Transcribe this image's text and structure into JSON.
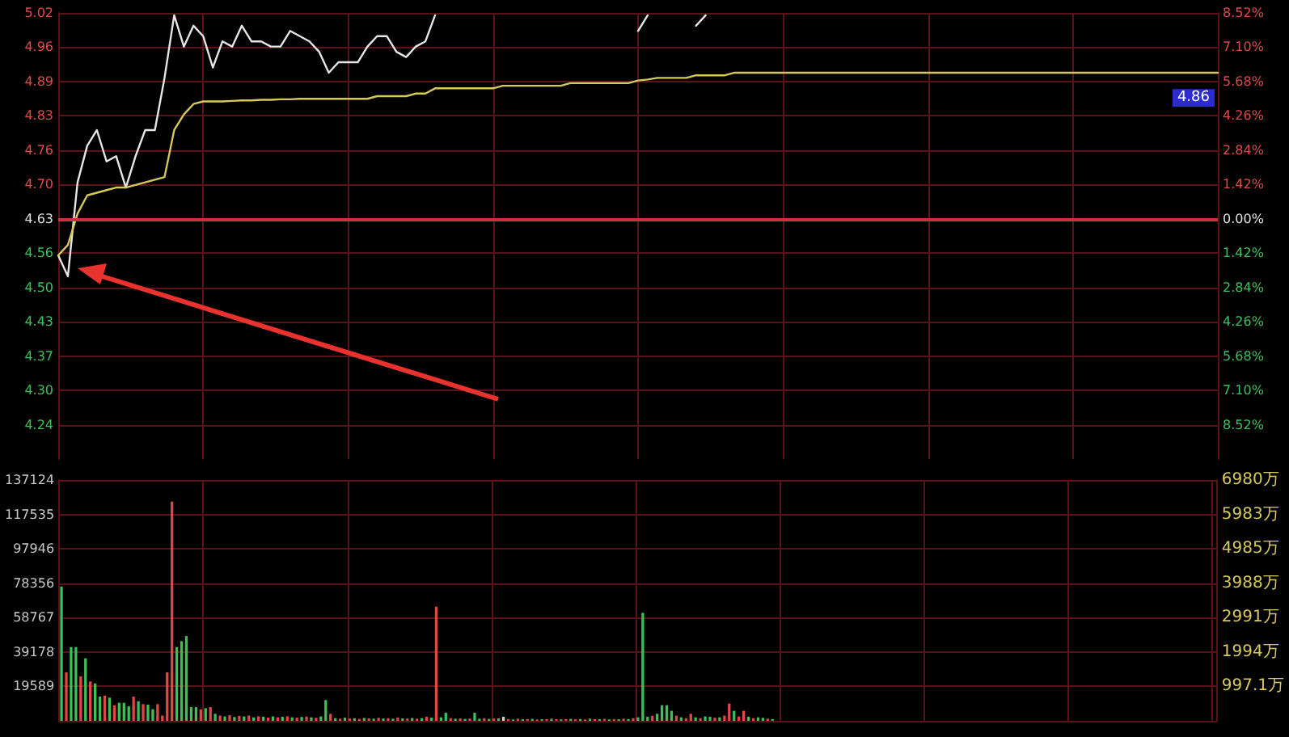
{
  "chart_data": [
    {
      "type": "line",
      "categories": [
        null,
        null,
        null,
        null,
        null,
        null,
        null,
        null,
        null,
        null,
        null,
        null,
        null,
        null,
        null,
        null,
        null,
        null,
        null,
        null,
        null,
        null,
        null,
        null,
        null,
        null,
        null,
        null,
        null,
        null,
        null,
        null,
        null,
        null,
        null,
        null,
        null,
        null,
        null,
        null,
        null,
        null,
        null,
        null,
        null,
        null,
        null,
        null,
        null,
        null,
        null,
        null,
        null,
        null,
        null,
        null,
        null,
        null,
        null,
        null,
        null,
        null,
        null,
        null,
        null,
        null,
        null,
        null,
        null,
        null,
        null,
        null,
        null,
        null,
        null,
        null,
        null,
        null,
        null,
        null,
        null,
        null,
        null,
        null,
        null,
        null,
        null,
        null,
        null,
        null,
        null,
        null,
        null,
        null,
        null,
        null,
        null,
        null,
        null,
        null,
        null,
        null,
        null,
        null,
        null,
        null,
        null,
        null,
        null,
        null,
        null,
        null,
        null,
        null,
        null,
        null,
        null,
        null,
        null,
        null,
        null
      ],
      "series": [
        {
          "color": "#e6e6e6",
          "values": [
            4.56,
            4.52,
            4.7,
            4.77,
            4.8,
            4.74,
            4.75,
            4.69,
            4.75,
            4.8,
            4.8,
            4.9,
            5.02,
            4.96,
            5.0,
            4.98,
            4.92,
            4.97,
            4.96,
            5.0,
            4.97,
            4.97,
            4.96,
            4.96,
            4.99,
            4.98,
            4.97,
            4.95,
            4.91,
            4.93,
            4.93,
            4.93,
            4.96,
            4.98,
            4.98,
            4.95,
            4.94,
            4.96,
            4.97,
            5.02,
            null,
            null,
            null,
            null,
            null,
            null,
            null,
            null,
            null,
            null,
            null,
            null,
            null,
            null,
            null,
            null,
            null,
            null,
            null,
            null,
            4.99,
            5.02,
            null,
            null,
            null,
            null,
            5.0,
            5.02,
            null,
            null,
            null,
            null,
            null,
            null,
            null,
            null,
            null,
            null,
            null,
            null,
            null,
            null,
            null,
            null,
            null,
            null,
            null,
            null,
            null,
            null,
            null,
            null,
            null,
            null,
            null,
            null,
            null,
            null,
            null,
            null,
            null,
            null,
            null,
            null,
            null,
            null,
            null,
            null,
            null,
            null,
            null,
            null,
            null,
            null,
            null,
            null,
            null,
            null,
            null,
            null,
            null
          ]
        },
        {
          "color": "#d6c85a",
          "values": [
            4.56,
            4.58,
            4.64,
            4.675,
            4.68,
            4.685,
            4.69,
            4.69,
            4.695,
            4.7,
            4.705,
            4.71,
            4.8,
            4.83,
            4.85,
            4.855,
            4.855,
            4.855,
            4.856,
            4.857,
            4.857,
            4.858,
            4.858,
            4.859,
            4.859,
            4.86,
            4.86,
            4.86,
            4.86,
            4.86,
            4.86,
            4.86,
            4.86,
            4.865,
            4.865,
            4.865,
            4.865,
            4.87,
            4.87,
            4.88,
            4.88,
            4.88,
            4.88,
            4.88,
            4.88,
            4.88,
            4.885,
            4.885,
            4.885,
            4.885,
            4.885,
            4.885,
            4.885,
            4.89,
            4.89,
            4.89,
            4.89,
            4.89,
            4.89,
            4.89,
            4.895,
            4.897,
            4.9,
            4.9,
            4.9,
            4.9,
            4.905,
            4.905,
            4.905,
            4.905,
            4.91,
            4.91,
            4.91,
            4.91,
            4.91,
            4.91,
            4.91,
            4.91,
            4.91,
            4.91,
            4.91,
            4.91,
            4.91,
            4.91,
            4.91,
            4.91,
            4.91,
            4.91,
            4.91,
            4.91,
            4.91,
            4.91,
            4.91,
            4.91,
            4.91,
            4.91,
            4.91,
            4.91,
            4.91,
            4.91,
            4.91,
            4.91,
            4.91,
            4.91,
            4.91,
            4.91,
            4.91,
            4.91,
            4.91,
            4.91,
            4.91,
            4.91,
            4.91,
            4.91,
            4.91,
            4.91,
            4.91,
            4.91,
            4.91,
            4.91,
            4.91
          ]
        }
      ],
      "ylim": [
        4.1698,
        5.0245
      ],
      "yticks": [
        {
          "value": 4.2355,
          "label": "4.24"
        },
        {
          "value": 4.3013,
          "label": "4.30"
        },
        {
          "value": 4.367,
          "label": "4.37"
        },
        {
          "value": 4.4328,
          "label": "4.43"
        },
        {
          "value": 4.4985,
          "label": "4.50"
        },
        {
          "value": 4.5643,
          "label": "4.56"
        },
        {
          "value": 4.63,
          "label": "4.63"
        },
        {
          "value": 4.6958,
          "label": "4.70"
        },
        {
          "value": 4.7615,
          "label": "4.76"
        },
        {
          "value": 4.8273,
          "label": "4.83"
        },
        {
          "value": 4.893,
          "label": "4.89"
        },
        {
          "value": 4.9588,
          "label": "4.96"
        },
        {
          "value": 5.0245,
          "label": "5.02"
        }
      ],
      "y2lim": [
        -9.94,
        8.52
      ],
      "y2ticks": [
        {
          "value": -8.52,
          "label": "8.52%"
        },
        {
          "value": -7.1,
          "label": "7.10%"
        },
        {
          "value": -5.68,
          "label": "5.68%"
        },
        {
          "value": -4.26,
          "label": "4.26%"
        },
        {
          "value": -2.84,
          "label": "2.84%"
        },
        {
          "value": -1.42,
          "label": "1.42%"
        },
        {
          "value": 0,
          "label": "0.00%"
        },
        {
          "value": 1.42,
          "label": "1.42%"
        },
        {
          "value": 2.84,
          "label": "2.84%"
        },
        {
          "value": 4.26,
          "label": "4.26%"
        },
        {
          "value": 5.68,
          "label": "5.68%"
        },
        {
          "value": 7.1,
          "label": "7.10%"
        },
        {
          "value": 8.52,
          "label": "8.52%"
        }
      ],
      "ref_lines": [
        {
          "axis": "y",
          "value": 4.63,
          "color": "#c8323c"
        }
      ],
      "annotations": [
        {
          "text": "4.86",
          "y": 4.86
        }
      ],
      "grid": true,
      "marker": "none",
      "line_style": "solid"
    },
    {
      "type": "bar",
      "categories": [
        null,
        null,
        null,
        null,
        null,
        null,
        null,
        null,
        null,
        null,
        null,
        null,
        null,
        null,
        null,
        null,
        null,
        null,
        null,
        null,
        null,
        null,
        null,
        null,
        null,
        null,
        null,
        null,
        null,
        null,
        null,
        null,
        null,
        null,
        null,
        null,
        null,
        null,
        null,
        null,
        null,
        null,
        null,
        null,
        null,
        null,
        null,
        null,
        null,
        null,
        null,
        null,
        null,
        null,
        null,
        null,
        null,
        null,
        null,
        null,
        null,
        null,
        null,
        null,
        null,
        null,
        null,
        null,
        null,
        null,
        null,
        null,
        null,
        null,
        null,
        null,
        null,
        null,
        null,
        null,
        null,
        null,
        null,
        null,
        null,
        null,
        null,
        null,
        null,
        null,
        null,
        null,
        null,
        null,
        null,
        null,
        null,
        null,
        null,
        null,
        null,
        null,
        null,
        null,
        null,
        null,
        null,
        null,
        null,
        null,
        null,
        null,
        null,
        null,
        null,
        null,
        null,
        null,
        null,
        null,
        null,
        null,
        null,
        null,
        null,
        null,
        null,
        null,
        null,
        null,
        null,
        null,
        null,
        null,
        null,
        null,
        null,
        null,
        null,
        null,
        null,
        null,
        null,
        null,
        null,
        null,
        null,
        null,
        null,
        null,
        null,
        null,
        null,
        null,
        null,
        null,
        null,
        null,
        null,
        null,
        null,
        null,
        null,
        null,
        null,
        null,
        null,
        null,
        null,
        null,
        null,
        null,
        null,
        null,
        null,
        null,
        null,
        null,
        null,
        null,
        null,
        null,
        null,
        null,
        null,
        null,
        null,
        null,
        null,
        null,
        null,
        null,
        null,
        null,
        null,
        null,
        null,
        null,
        null,
        null,
        null,
        null,
        null,
        null,
        null,
        null,
        null,
        null,
        null,
        null,
        null,
        null,
        null,
        null,
        null,
        null,
        null,
        null,
        null,
        null,
        null,
        null,
        null,
        null,
        null,
        null,
        null,
        null,
        null,
        null,
        null,
        null,
        null,
        null,
        null,
        null,
        null,
        null,
        null,
        null,
        null
      ],
      "values": [
        76500,
        27600,
        42000,
        42000,
        25300,
        35600,
        22400,
        21300,
        13800,
        14400,
        13200,
        8900,
        10300,
        10300,
        8300,
        13800,
        11200,
        9500,
        9200,
        6600,
        9500,
        3000,
        27600,
        124800,
        42000,
        45400,
        48300,
        7800,
        7800,
        6600,
        7200,
        7800,
        4000,
        3000,
        2500,
        3200,
        2200,
        2800,
        2500,
        3000,
        2000,
        2600,
        2300,
        1800,
        2500,
        2000,
        2300,
        2600,
        2000,
        1800,
        2200,
        2400,
        2000,
        1700,
        2500,
        11800,
        4000,
        1500,
        1200,
        1800,
        1300,
        1500,
        1100,
        1600,
        1400,
        1200,
        1700,
        1300,
        1500,
        1200,
        1900,
        1400,
        1300,
        1600,
        1200,
        1500,
        2300,
        1800,
        65000,
        2000,
        4600,
        1500,
        1200,
        1400,
        1100,
        1300,
        4600,
        1200,
        1500,
        1100,
        1300,
        1400,
        2300,
        1000,
        800,
        1200,
        900,
        1000,
        1100,
        800,
        900,
        1000,
        1200,
        900,
        800,
        1000,
        1100,
        900,
        1000,
        800,
        1200,
        1000,
        900,
        1100,
        800,
        1000,
        900,
        1200,
        1000,
        1500,
        2000,
        61500,
        2300,
        2900,
        4000,
        8900,
        8900,
        5700,
        2900,
        2000,
        1500,
        4000,
        2000,
        1500,
        2500,
        2300,
        1800,
        2000,
        3000,
        9800,
        5700,
        2500,
        5700,
        2300,
        1500,
        2000,
        1700,
        1200,
        1000,
        null,
        null,
        null,
        null,
        null,
        null,
        null,
        null,
        null,
        null,
        null,
        null,
        null,
        null,
        null,
        null,
        null,
        null,
        null,
        null,
        null,
        null,
        null,
        null,
        null,
        null,
        null,
        null,
        null,
        null,
        null,
        null,
        null,
        null,
        null,
        null,
        null,
        null,
        null,
        null,
        null,
        null,
        null,
        null,
        null,
        null,
        null,
        null,
        null,
        null,
        null,
        null,
        null,
        null,
        null,
        null,
        null,
        null,
        null,
        null,
        null,
        null,
        null,
        null,
        null,
        null,
        null,
        null,
        null,
        null,
        null,
        null,
        null,
        null,
        null,
        null,
        null,
        null,
        null,
        null,
        null,
        null,
        null,
        null,
        null,
        null,
        null,
        null,
        null,
        null,
        null,
        null
      ],
      "colors": [
        "#3cc05a",
        "#e04848",
        "#3cc05a",
        "#3cc05a",
        "#e04848",
        "#3cc05a",
        "#e04848",
        "#3cc05a",
        "#3cc05a",
        "#e04848",
        "#3cc05a",
        "#e04848",
        "#3cc05a",
        "#3cc05a",
        "#3cc05a",
        "#e04848",
        "#3cc05a",
        "#e04848",
        "#3cc05a",
        "#3cc05a",
        "#e04848",
        "#e04848",
        "#e04848",
        "#e04848",
        "#3cc05a",
        "#3cc05a",
        "#3cc05a",
        "#3cc05a",
        "#3cc05a",
        "#e04848",
        "#3cc05a",
        "#e04848",
        "#3cc05a",
        "#e04848",
        "#3cc05a",
        "#e04848",
        "#3cc05a",
        "#e04848",
        "#3cc05a",
        "#e04848",
        "#3cc05a",
        "#e04848",
        "#3cc05a",
        "#e04848",
        "#3cc05a",
        "#e04848",
        "#3cc05a",
        "#e04848",
        "#3cc05a",
        "#e04848",
        "#3cc05a",
        "#e04848",
        "#3cc05a",
        "#e04848",
        "#3cc05a",
        "#3cc05a",
        "#e04848",
        "#3cc05a",
        "#e04848",
        "#3cc05a",
        "#e04848",
        "#3cc05a",
        "#e04848",
        "#3cc05a",
        "#e04848",
        "#3cc05a",
        "#e04848",
        "#3cc05a",
        "#e04848",
        "#3cc05a",
        "#e04848",
        "#3cc05a",
        "#e04848",
        "#3cc05a",
        "#e04848",
        "#3cc05a",
        "#e04848",
        "#3cc05a",
        "#e04848",
        "#3cc05a",
        "#3cc05a",
        "#e04848",
        "#3cc05a",
        "#e04848",
        "#3cc05a",
        "#e04848",
        "#3cc05a",
        "#3cc05a",
        "#e04848",
        "#3cc05a",
        "#e04848",
        "#3cc05a",
        "#d0d0d0",
        "#e04848",
        "#3cc05a",
        "#e04848",
        "#3cc05a",
        "#e04848",
        "#3cc05a",
        "#e04848",
        "#3cc05a",
        "#e04848",
        "#3cc05a",
        "#e04848",
        "#3cc05a",
        "#e04848",
        "#3cc05a",
        "#e04848",
        "#3cc05a",
        "#e04848",
        "#3cc05a",
        "#e04848",
        "#3cc05a",
        "#e04848",
        "#3cc05a",
        "#e04848",
        "#3cc05a",
        "#e04848",
        "#3cc05a",
        "#e04848",
        "#3cc05a",
        "#3cc05a",
        "#3cc05a",
        "#e04848",
        "#3cc05a",
        "#3cc05a",
        "#3cc05a",
        "#3cc05a",
        "#e04848",
        "#3cc05a",
        "#e04848",
        "#e04848",
        "#3cc05a",
        "#e04848",
        "#3cc05a",
        "#3cc05a",
        "#e04848",
        "#3cc05a",
        "#e04848",
        "#e04848",
        "#3cc05a",
        "#e04848",
        "#e04848",
        "#3cc05a",
        "#e04848",
        "#3cc05a",
        "#3cc05a",
        "#e04848",
        "#3cc05a",
        null,
        null,
        null,
        null,
        null,
        null,
        null,
        null,
        null,
        null,
        null,
        null,
        null,
        null,
        null,
        null,
        null,
        null,
        null,
        null,
        null,
        null,
        null,
        null,
        null,
        null,
        null,
        null,
        null,
        null,
        null,
        null,
        null,
        null,
        null,
        null,
        null,
        null,
        null,
        null,
        null,
        null,
        null,
        null,
        null,
        null,
        null,
        null,
        null,
        null,
        null,
        null,
        null,
        null,
        null,
        null,
        null,
        null,
        null,
        null,
        null,
        null,
        null,
        null,
        null,
        null,
        null,
        null,
        null,
        null,
        null,
        null,
        null,
        null,
        null,
        null,
        null,
        null,
        null,
        null,
        null,
        null,
        null,
        null,
        null,
        null,
        null,
        null,
        null,
        null,
        null,
        null
      ],
      "ylim": [
        0,
        137124
      ],
      "yticks": [
        19589,
        39178,
        58767,
        78356,
        97946,
        117535,
        137124
      ],
      "y2lim": [
        0,
        6979.7
      ],
      "y2ticks": [
        {
          "value": 997.1,
          "label": "997.1万"
        },
        {
          "value": 1994.2,
          "label": "1994万"
        },
        {
          "value": 2991.3,
          "label": "2991万"
        },
        {
          "value": 3988.4,
          "label": "3988万"
        },
        {
          "value": 4985.5,
          "label": "4985万"
        },
        {
          "value": 5982.6,
          "label": "5983万"
        },
        {
          "value": 6979.7,
          "label": "6980万"
        }
      ],
      "grid": true
    }
  ]
}
